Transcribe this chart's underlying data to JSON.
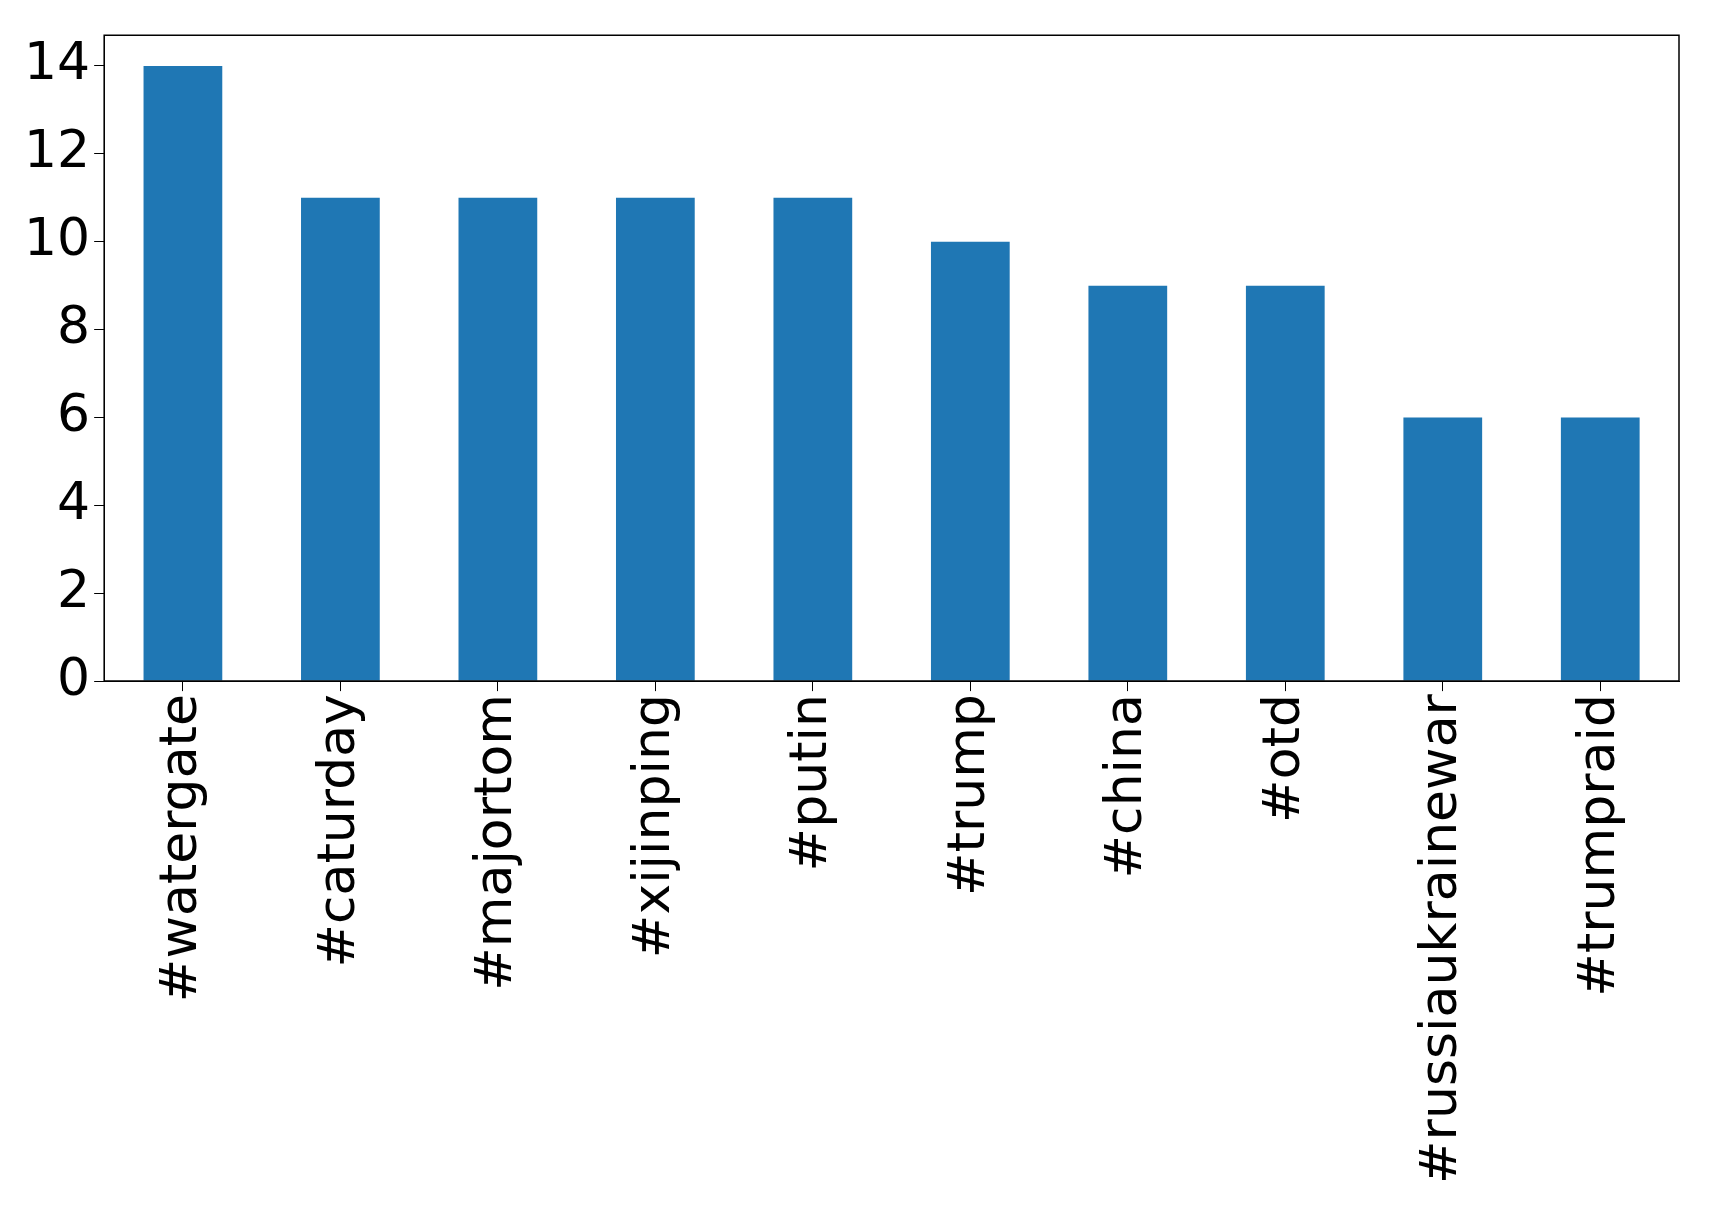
{
  "chart_data": {
    "type": "bar",
    "categories": [
      "#watergate",
      "#caturday",
      "#majortom",
      "#xijinping",
      "#putin",
      "#trump",
      "#china",
      "#otd",
      "#russiaukrainewar",
      "#trumpraid"
    ],
    "values": [
      14,
      11,
      11,
      11,
      11,
      10,
      9,
      9,
      6,
      6
    ],
    "color": "#1f77b4",
    "ylim": [
      0,
      14.7
    ],
    "yticks": [
      0,
      2,
      4,
      6,
      8,
      10,
      12,
      14
    ],
    "grid": false
  }
}
